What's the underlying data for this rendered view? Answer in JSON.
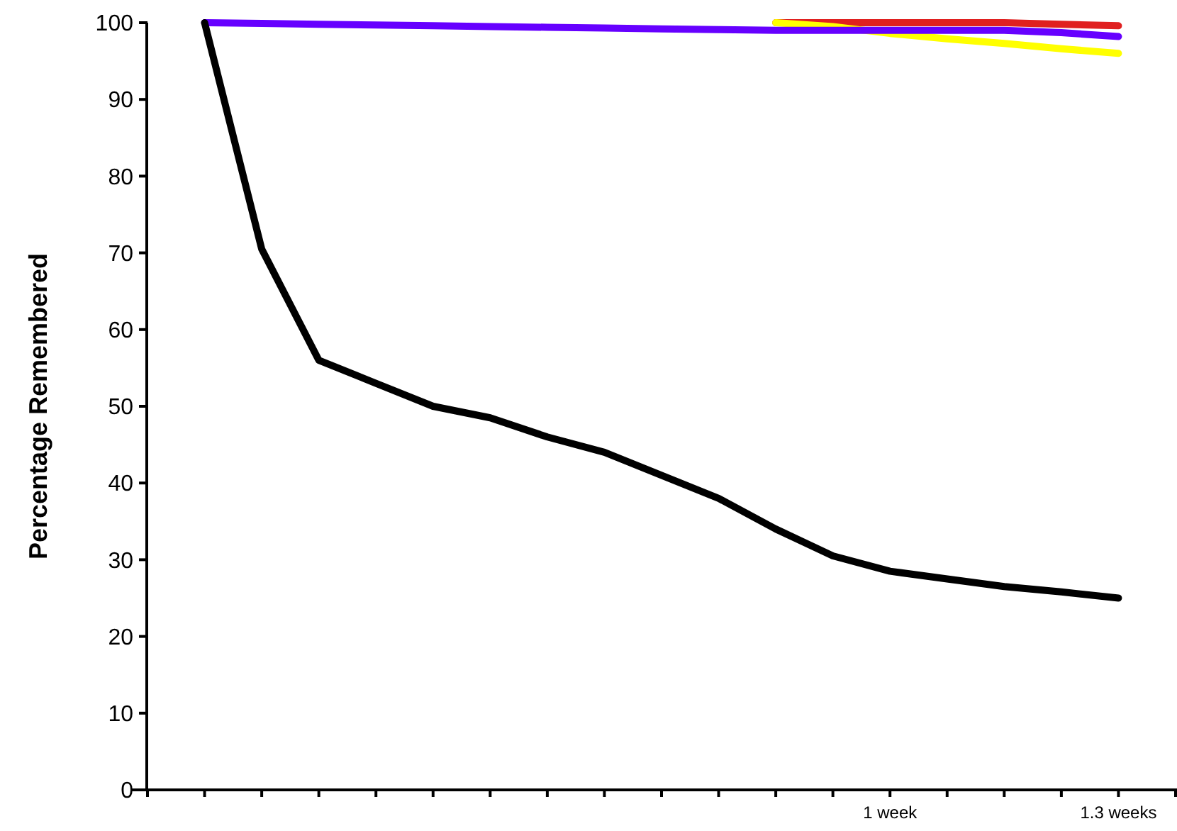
{
  "chart_data": {
    "type": "line",
    "ylabel": "Percentage Remembered",
    "categories": [
      null,
      null,
      null,
      null,
      null,
      null,
      null,
      null,
      null,
      null,
      null,
      null,
      null,
      "1 week",
      null,
      null,
      null,
      "1.3 weeks",
      null
    ],
    "ylim": [
      0,
      100
    ],
    "yticks": [
      0,
      10,
      20,
      30,
      40,
      50,
      60,
      70,
      80,
      90,
      100
    ],
    "grid": false,
    "marker": "none",
    "line_style": "solid",
    "series": [
      {
        "color": "#e02020",
        "values": [
          null,
          null,
          null,
          null,
          null,
          null,
          null,
          null,
          null,
          null,
          null,
          100,
          100,
          100,
          100,
          100,
          99.8,
          99.6,
          null
        ]
      },
      {
        "color": "#ffff00",
        "values": [
          null,
          null,
          null,
          null,
          null,
          null,
          null,
          null,
          null,
          null,
          null,
          100,
          99.5,
          98.6,
          97.9,
          97.3,
          96.6,
          96,
          null
        ]
      },
      {
        "color": "#6600ff",
        "values": [
          null,
          100,
          99.9,
          99.8,
          99.7,
          99.6,
          99.5,
          99.4,
          99.3,
          99.2,
          99.1,
          99,
          99,
          99,
          99,
          99,
          98.7,
          98.2,
          null
        ]
      },
      {
        "color": "#000000",
        "values": [
          null,
          100,
          70.5,
          56,
          53,
          50,
          48.5,
          46,
          44,
          41,
          38,
          34,
          30.5,
          28.5,
          27.5,
          26.5,
          25.8,
          25,
          null
        ]
      }
    ]
  }
}
